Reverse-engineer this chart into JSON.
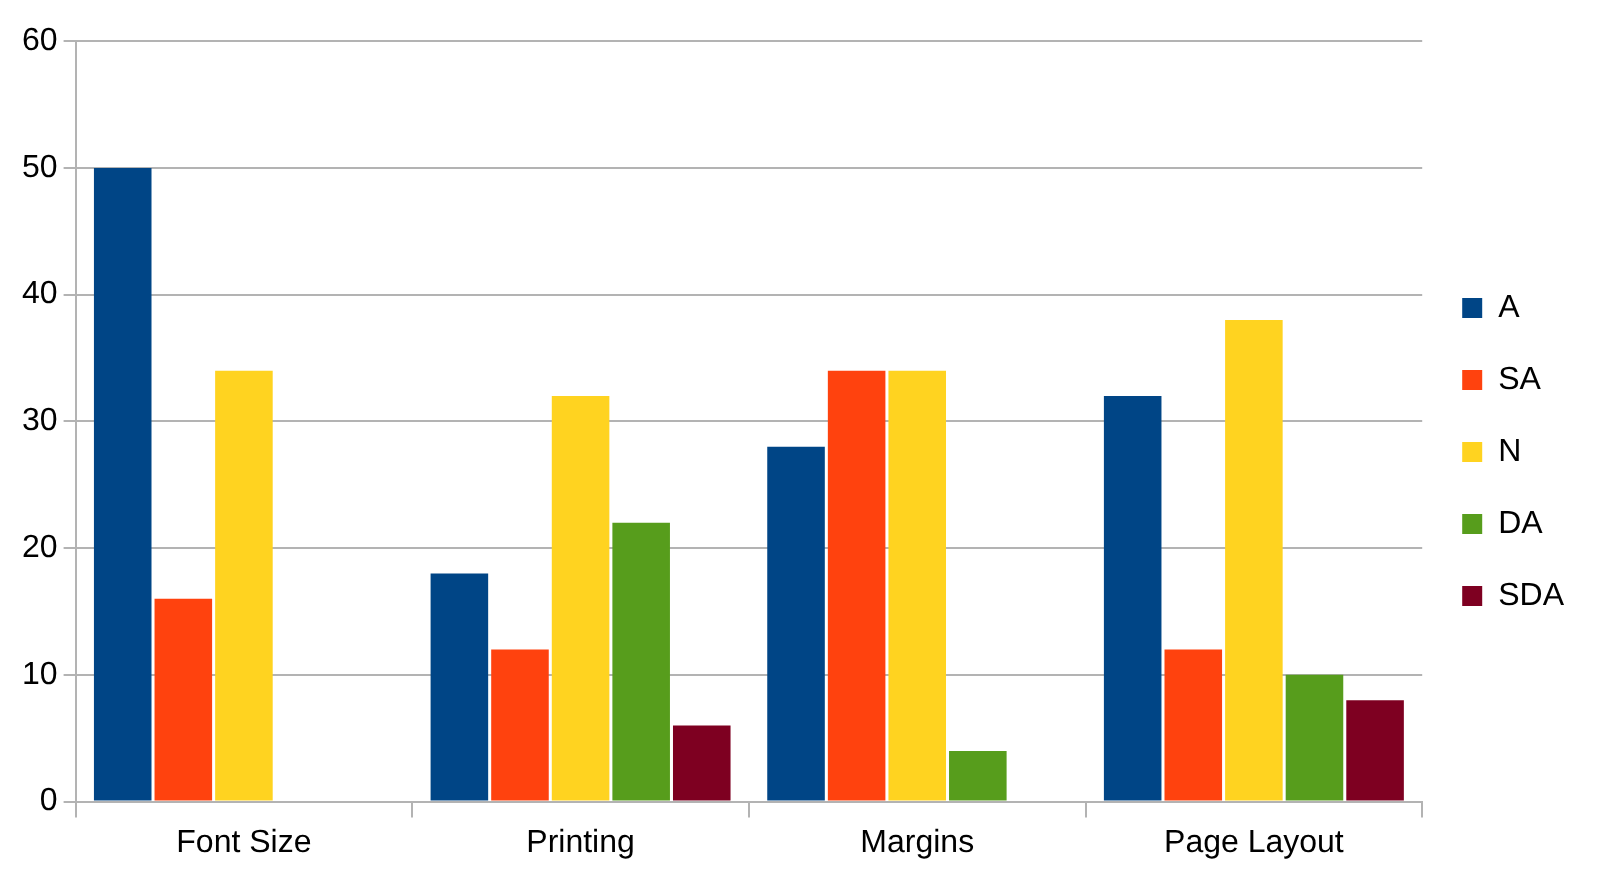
{
  "chart_data": {
    "type": "bar",
    "categories": [
      "Font Size",
      "Printing",
      "Margins",
      "Page Layout"
    ],
    "series": [
      {
        "name": "A",
        "color": "#004586",
        "values": [
          50,
          18,
          28,
          32
        ]
      },
      {
        "name": "SA",
        "color": "#ff420e",
        "values": [
          16,
          12,
          34,
          12
        ]
      },
      {
        "name": "N",
        "color": "#ffd320",
        "values": [
          34,
          32,
          34,
          38
        ]
      },
      {
        "name": "DA",
        "color": "#579d1c",
        "values": [
          0,
          22,
          4,
          10
        ]
      },
      {
        "name": "SDA",
        "color": "#7e0021",
        "values": [
          0,
          6,
          0,
          8
        ]
      }
    ],
    "ylim": [
      0,
      60
    ],
    "yticks": [
      0,
      10,
      20,
      30,
      40,
      50,
      60
    ],
    "grid": "y",
    "legend": "right"
  }
}
